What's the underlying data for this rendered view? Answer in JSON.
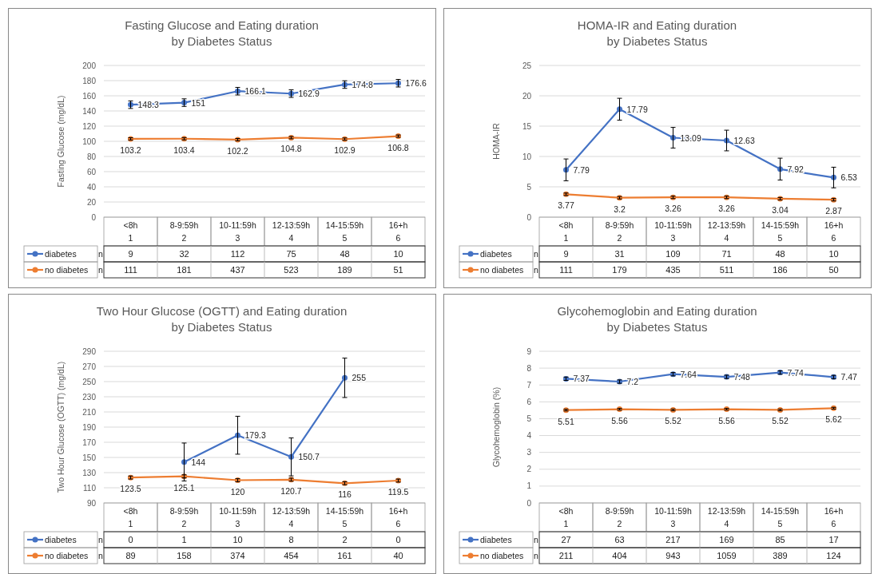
{
  "chart_data": [
    {
      "type": "line",
      "title": "Fasting Glucose and Eating duration\nby Diabetes Status",
      "ylabel": "Fasting Glucose (mg/dL)",
      "categories": [
        "<8h\n1",
        "8-9:59h\n2",
        "10-11:59h\n3",
        "12-13:59h\n4",
        "14-15:59h\n5",
        "16+h\n6"
      ],
      "ylim": [
        0,
        200
      ],
      "yticks": [
        0,
        20,
        40,
        60,
        80,
        100,
        120,
        140,
        160,
        180,
        200
      ],
      "grid": "y",
      "marker": "circle",
      "legend": "bottom left",
      "data_labels": true,
      "series": [
        {
          "name": "diabetes",
          "color": "#4472c4",
          "values": [
            148.3,
            151,
            166.1,
            162.9,
            174.8,
            176.6
          ],
          "errors": [
            5,
            5,
            5,
            5,
            5,
            5
          ]
        },
        {
          "name": "no diabetes",
          "color": "#ed7d31",
          "values": [
            103.2,
            103.4,
            102.2,
            104.8,
            102.9,
            106.8
          ],
          "errors": [
            1.5,
            1.5,
            1.5,
            1.5,
            1.5,
            1.5
          ]
        }
      ],
      "annotations": [
        "n",
        "9",
        "32",
        "112",
        "75",
        "48",
        "10",
        "n",
        "111",
        "181",
        "437",
        "523",
        "189",
        "51"
      ]
    },
    {
      "type": "line",
      "title": "HOMA-IR and Eating duration\nby Diabetes Status",
      "ylabel": "HOMA-IR",
      "categories": [
        "<8h\n1",
        "8-9:59h\n2",
        "10-11:59h\n3",
        "12-13:59h\n4",
        "14-15:59h\n5",
        "16+h\n6"
      ],
      "ylim": [
        0,
        25
      ],
      "yticks": [
        0,
        5,
        10,
        15,
        20,
        25
      ],
      "grid": "y",
      "marker": "circle",
      "legend": "bottom left",
      "data_labels": true,
      "series": [
        {
          "name": "diabetes",
          "color": "#4472c4",
          "values": [
            7.79,
            17.79,
            13.09,
            12.63,
            7.92,
            6.53
          ],
          "errors": [
            1.8,
            1.8,
            1.7,
            1.7,
            1.8,
            1.7
          ]
        },
        {
          "name": "no diabetes",
          "color": "#ed7d31",
          "values": [
            3.77,
            3.2,
            3.26,
            3.26,
            3.04,
            2.87
          ],
          "errors": [
            0.2,
            0.2,
            0.2,
            0.2,
            0.2,
            0.2
          ]
        }
      ],
      "annotations": [
        "n",
        "9",
        "31",
        "109",
        "71",
        "48",
        "10",
        "n",
        "111",
        "179",
        "435",
        "511",
        "186",
        "50"
      ]
    },
    {
      "type": "line",
      "title": "Two Hour Glucose (OGTT) and Eating duration\nby Diabetes Status",
      "ylabel": "Two Hour Glucose (OGTT) (mg/dL)",
      "categories": [
        "<8h\n1",
        "8-9:59h\n2",
        "10-11:59h\n3",
        "12-13:59h\n4",
        "14-15:59h\n5",
        "16+h\n6"
      ],
      "ylim": [
        90,
        290
      ],
      "yticks": [
        90,
        110,
        130,
        150,
        170,
        190,
        210,
        230,
        250,
        270,
        290
      ],
      "grid": "y",
      "marker": "circle",
      "legend": "bottom left",
      "data_labels": true,
      "series": [
        {
          "name": "diabetes",
          "color": "#4472c4",
          "values": [
            null,
            144,
            179.3,
            150.7,
            255,
            null
          ],
          "errors": [
            null,
            25,
            25,
            25,
            26,
            null
          ]
        },
        {
          "name": "no diabetes",
          "color": "#ed7d31",
          "values": [
            123.5,
            125.1,
            120,
            120.7,
            116,
            119.5
          ],
          "errors": [
            2,
            2,
            2,
            2,
            2,
            2
          ]
        }
      ],
      "annotations": [
        "n",
        "0",
        "1",
        "10",
        "8",
        "2",
        "0",
        "n",
        "89",
        "158",
        "374",
        "454",
        "161",
        "40"
      ]
    },
    {
      "type": "line",
      "title": "Glycohemoglobin and Eating duration\nby Diabetes Status",
      "ylabel": "Glycohemoglobin (%)",
      "categories": [
        "<8h\n1",
        "8-9:59h\n2",
        "10-11:59h\n3",
        "12-13:59h\n4",
        "14-15:59h\n5",
        "16+h\n6"
      ],
      "ylim": [
        0,
        9
      ],
      "yticks": [
        0,
        1,
        2,
        3,
        4,
        5,
        6,
        7,
        8,
        9
      ],
      "grid": "y",
      "marker": "circle",
      "legend": "bottom left",
      "data_labels": true,
      "series": [
        {
          "name": "diabetes",
          "color": "#4472c4",
          "values": [
            7.37,
            7.2,
            7.64,
            7.48,
            7.74,
            7.47
          ],
          "errors": [
            0.1,
            0.1,
            0.1,
            0.1,
            0.1,
            0.1
          ]
        },
        {
          "name": "no diabetes",
          "color": "#ed7d31",
          "values": [
            5.51,
            5.56,
            5.52,
            5.56,
            5.52,
            5.62
          ],
          "errors": [
            0.05,
            0.05,
            0.05,
            0.05,
            0.05,
            0.05
          ]
        }
      ],
      "annotations": [
        "n",
        "27",
        "63",
        "217",
        "169",
        "85",
        "17",
        "n",
        "211",
        "404",
        "943",
        "1059",
        "389",
        "124"
      ]
    }
  ]
}
